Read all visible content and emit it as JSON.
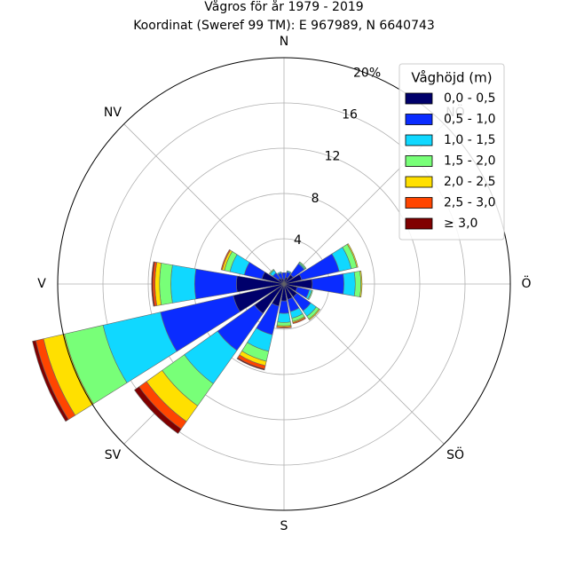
{
  "chart_data": {
    "type": "windrose",
    "title": "Vågros för år 1979 - 2019",
    "subtitle": "Koordinat (Sweref 99 TM): E 967989, N 6640743",
    "directions": [
      "N",
      "NV",
      "V",
      "SV",
      "S",
      "SÖ",
      "Ö",
      "NÖ"
    ],
    "direction_angles_deg": [
      0,
      315,
      270,
      225,
      180,
      135,
      90,
      45
    ],
    "radial_ticks": [
      "4",
      "8",
      "12",
      "16",
      "20%"
    ],
    "radial_tick_values": [
      4,
      8,
      12,
      16,
      20
    ],
    "r_max": 20,
    "legend": {
      "title": "Våghöjd (m)",
      "placement": "top-right",
      "entries": [
        "0,0 - 0,5",
        "0,5 - 1,0",
        "1,0 - 1,5",
        "1,5 - 2,0",
        "2,0 - 2,5",
        "2,5 - 3,0",
        "≥ 3,0"
      ]
    },
    "colors": [
      "#00006b",
      "#0a2cff",
      "#10d8ff",
      "#78ff78",
      "#ffe000",
      "#ff4500",
      "#800000"
    ],
    "bin_width_deg": 22.5,
    "sectors": [
      {
        "angle": 0,
        "values": [
          0.4,
          0.6,
          0.0,
          0.0,
          0.0,
          0.0,
          0.0
        ]
      },
      {
        "angle": 22.5,
        "values": [
          0.6,
          0.5,
          0.1,
          0.0,
          0.0,
          0.0,
          0.0
        ]
      },
      {
        "angle": 45,
        "values": [
          1.0,
          1.2,
          0.1,
          0.1,
          0.0,
          0.0,
          0.0
        ]
      },
      {
        "angle": 67.5,
        "values": [
          1.6,
          3.4,
          1.1,
          0.5,
          0.1,
          0.0,
          0.0
        ]
      },
      {
        "angle": 90,
        "values": [
          2.5,
          2.8,
          1.0,
          0.5,
          0.1,
          0.0,
          0.0
        ]
      },
      {
        "angle": 112.5,
        "values": [
          1.2,
          1.1,
          0.2,
          0.1,
          0.0,
          0.0,
          0.0
        ]
      },
      {
        "angle": 135,
        "values": [
          1.4,
          1.5,
          0.6,
          0.3,
          0.1,
          0.0,
          0.0
        ]
      },
      {
        "angle": 157.5,
        "values": [
          1.4,
          1.1,
          0.6,
          0.3,
          0.1,
          0.1,
          0.0
        ]
      },
      {
        "angle": 180,
        "values": [
          1.5,
          1.1,
          0.8,
          0.3,
          0.1,
          0.1,
          0.0
        ]
      },
      {
        "angle": 202.5,
        "values": [
          2.0,
          2.6,
          1.5,
          0.9,
          0.4,
          0.3,
          0.1
        ]
      },
      {
        "angle": 225,
        "values": [
          3.2,
          4.0,
          3.6,
          2.4,
          1.7,
          0.8,
          0.5
        ]
      },
      {
        "angle": 247.5,
        "values": [
          4.6,
          6.6,
          5.2,
          3.5,
          1.9,
          0.7,
          0.3
        ]
      },
      {
        "angle": 270,
        "values": [
          4.2,
          3.7,
          2.1,
          1.0,
          0.4,
          0.2,
          0.1
        ]
      },
      {
        "angle": 292.5,
        "values": [
          2.0,
          1.6,
          1.3,
          0.5,
          0.2,
          0.1,
          0.0
        ]
      },
      {
        "angle": 315,
        "values": [
          0.6,
          0.6,
          0.3,
          0.1,
          0.0,
          0.0,
          0.0
        ]
      },
      {
        "angle": 337.5,
        "values": [
          0.5,
          0.5,
          0.1,
          0.0,
          0.0,
          0.0,
          0.0
        ]
      }
    ]
  }
}
